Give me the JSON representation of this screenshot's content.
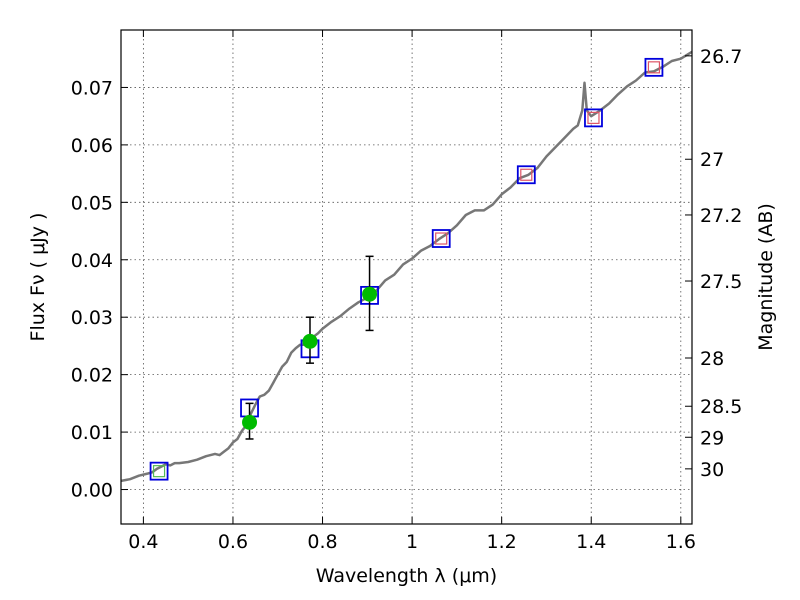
{
  "chart_data": {
    "type": "scatter",
    "xlabel": "Wavelength  λ (μm)",
    "ylabel": "Flux  Fν  ( μJy )",
    "y2label": "Magnitude (AB)",
    "xlim": [
      0.35,
      1.625
    ],
    "ylim": [
      -0.006,
      0.08
    ],
    "grid": true,
    "x_ticks": [
      0.4,
      0.6,
      0.8,
      1.0,
      1.2,
      1.4,
      1.6
    ],
    "x_tick_labels": [
      "0.4",
      "0.6",
      "0.8",
      "1",
      "1.2",
      "1.4",
      "1.6"
    ],
    "y_ticks": [
      0.0,
      0.01,
      0.02,
      0.03,
      0.04,
      0.05,
      0.06,
      0.07
    ],
    "y_tick_labels": [
      "0.00",
      "0.01",
      "0.02",
      "0.03",
      "0.04",
      "0.05",
      "0.06",
      "0.07"
    ],
    "mag_ticks": [
      {
        "label": "26.7",
        "flux": 0.0755
      },
      {
        "label": "27",
        "flux": 0.0575
      },
      {
        "label": "27.2",
        "flux": 0.0478
      },
      {
        "label": "27.5",
        "flux": 0.0363
      },
      {
        "label": "28",
        "flux": 0.0229
      },
      {
        "label": "28.5",
        "flux": 0.0145
      },
      {
        "label": "29",
        "flux": 0.0091
      },
      {
        "label": "30",
        "flux": 0.0036
      }
    ],
    "series": [
      {
        "kind": "line",
        "color": "#777777",
        "x": [
          0.35,
          0.37,
          0.39,
          0.41,
          0.42,
          0.43,
          0.44,
          0.45,
          0.46,
          0.47,
          0.48,
          0.5,
          0.52,
          0.54,
          0.56,
          0.57,
          0.58,
          0.59,
          0.6,
          0.61,
          0.62,
          0.63,
          0.64,
          0.65,
          0.66,
          0.67,
          0.68,
          0.69,
          0.7,
          0.71,
          0.72,
          0.73,
          0.74,
          0.75,
          0.76,
          0.77,
          0.78,
          0.79,
          0.8,
          0.82,
          0.84,
          0.86,
          0.88,
          0.9,
          0.91,
          0.92,
          0.94,
          0.96,
          0.98,
          1.0,
          1.02,
          1.04,
          1.06,
          1.08,
          1.1,
          1.12,
          1.14,
          1.16,
          1.18,
          1.2,
          1.22,
          1.24,
          1.26,
          1.28,
          1.3,
          1.32,
          1.34,
          1.36,
          1.37,
          1.38,
          1.385,
          1.39,
          1.4,
          1.42,
          1.44,
          1.46,
          1.48,
          1.5,
          1.52,
          1.54,
          1.56,
          1.58,
          1.6,
          1.625
        ],
        "values": [
          0.0015,
          0.0018,
          0.0024,
          0.0028,
          0.003,
          0.0036,
          0.004,
          0.0044,
          0.0042,
          0.0046,
          0.0046,
          0.0048,
          0.0052,
          0.0058,
          0.0062,
          0.006,
          0.0066,
          0.0072,
          0.0082,
          0.0088,
          0.0102,
          0.0112,
          0.0132,
          0.0148,
          0.0162,
          0.0165,
          0.0172,
          0.0186,
          0.02,
          0.0214,
          0.0222,
          0.0238,
          0.0246,
          0.0252,
          0.0252,
          0.026,
          0.0266,
          0.0272,
          0.028,
          0.0292,
          0.0302,
          0.0315,
          0.0326,
          0.0334,
          0.0336,
          0.0346,
          0.0364,
          0.0374,
          0.0392,
          0.0402,
          0.0416,
          0.0424,
          0.0436,
          0.0446,
          0.046,
          0.0478,
          0.0486,
          0.0486,
          0.0496,
          0.0514,
          0.0526,
          0.0542,
          0.0548,
          0.056,
          0.058,
          0.0596,
          0.0612,
          0.0628,
          0.0634,
          0.066,
          0.0708,
          0.066,
          0.065,
          0.066,
          0.0672,
          0.0688,
          0.0702,
          0.0712,
          0.0726,
          0.0728,
          0.0736,
          0.0746,
          0.075,
          0.0762
        ]
      },
      {
        "kind": "open-square",
        "color": "#0000dd",
        "x": [
          0.435,
          0.637,
          0.772,
          0.905,
          1.065,
          1.255,
          1.405,
          1.54
        ],
        "values": [
          0.0032,
          0.0142,
          0.0245,
          0.0338,
          0.0437,
          0.0548,
          0.0647,
          0.0735
        ]
      },
      {
        "kind": "inner-square",
        "color": "#dd5566",
        "x": [
          1.065,
          1.255,
          1.405,
          1.54
        ],
        "values": [
          0.0437,
          0.0548,
          0.0647,
          0.0735
        ]
      },
      {
        "kind": "inner-square",
        "color": "#55bb55",
        "x": [
          0.435
        ],
        "values": [
          0.0032
        ]
      },
      {
        "kind": "errorbar-point",
        "color": "#00bb00",
        "x": [
          0.637,
          0.772,
          0.905
        ],
        "values": [
          0.0117,
          0.0258,
          0.034
        ],
        "err_low": [
          0.0029,
          0.0038,
          0.0063
        ],
        "err_high": [
          0.0033,
          0.0042,
          0.0066
        ]
      }
    ]
  }
}
